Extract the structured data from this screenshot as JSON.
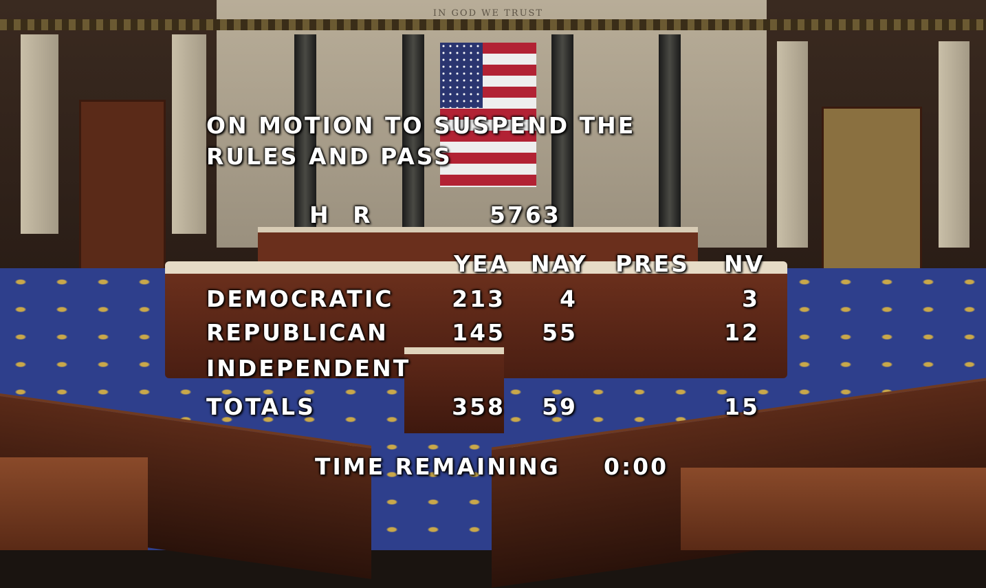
{
  "scene": {
    "inscription": "IN GOD WE TRUST"
  },
  "overlay": {
    "title_line1": "ON MOTION TO SUSPEND THE",
    "title_line2": "RULES AND PASS",
    "bill_prefix": "H R",
    "bill_number": "5763",
    "columns": [
      "YEA",
      "NAY",
      "PRES",
      "NV"
    ],
    "rows": [
      {
        "party": "DEMOCRATIC",
        "yea": "213",
        "nay": "4",
        "pres": "",
        "nv": "3"
      },
      {
        "party": "REPUBLICAN",
        "yea": "145",
        "nay": "55",
        "pres": "",
        "nv": "12"
      },
      {
        "party": "INDEPENDENT",
        "yea": "",
        "nay": "",
        "pres": "",
        "nv": ""
      },
      {
        "party": "TOTALS",
        "yea": "358",
        "nay": "59",
        "pres": "",
        "nv": "15"
      }
    ],
    "time_label": "TIME REMAINING",
    "time_value": "0:00"
  }
}
